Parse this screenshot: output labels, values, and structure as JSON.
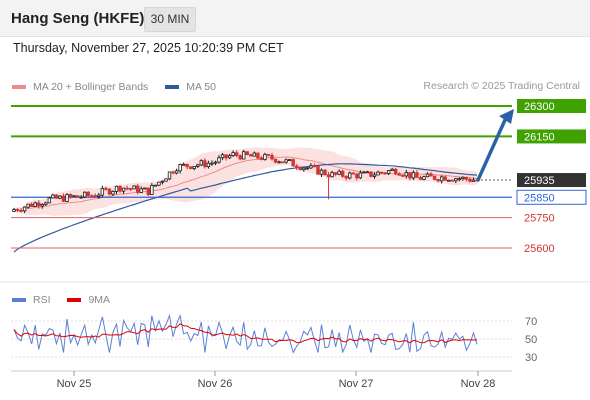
{
  "header": {
    "title": "Hang Seng (HKFE)",
    "timeframe": "30 MIN"
  },
  "datetime": "Thursday, November 27, 2025 10:20:39 PM CET",
  "legend": {
    "items": [
      {
        "label": "MA 20 + Bollinger Bands",
        "color": "#f08a8a"
      },
      {
        "label": "MA 50",
        "color": "#2f5b9a"
      }
    ],
    "credit": "Research © 2025 Trading Central"
  },
  "rsi_legend": {
    "items": [
      {
        "label": "RSI",
        "color": "#5b7fd6"
      },
      {
        "label": "9MA",
        "color": "#e00000"
      }
    ]
  },
  "colors": {
    "up": "#1b1b1b",
    "down": "#d23535",
    "target": "#3fa200",
    "pivot": "#3066d9",
    "support": "#e06262",
    "arrow": "#2a62a8",
    "band_fill": "#fbdcdc",
    "last_price_bg": "#333333"
  },
  "chart_data": {
    "type": "candlestick",
    "price_levels": {
      "targets": [
        26300,
        26150
      ],
      "pivot": 25850,
      "supports": [
        25750,
        25600
      ],
      "last_price": 25935
    },
    "price_axis_labels": [
      "26300",
      "26150",
      "25935",
      "25850",
      "25750",
      "25600"
    ],
    "x_ticks": [
      "Nov 25",
      "Nov 26",
      "Nov 27",
      "Nov 28"
    ],
    "rsi_ticks": [
      70,
      50,
      30
    ],
    "rsi_range": [
      20,
      80
    ],
    "projection": {
      "from": 25935,
      "to": 26300
    }
  }
}
